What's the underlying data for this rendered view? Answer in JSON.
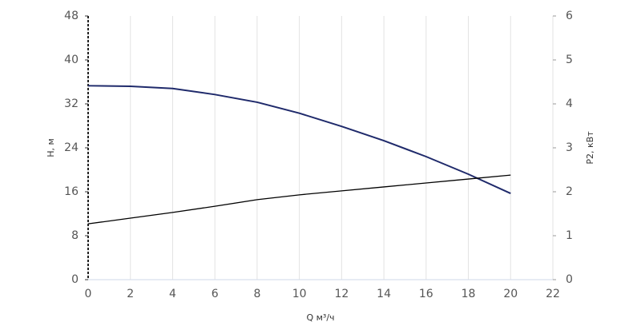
{
  "chart_data": {
    "type": "line",
    "x_label": "Q м³/ч",
    "y_label": "H, м",
    "y2_label": "P2, кВт",
    "x": [
      0,
      2,
      4,
      6,
      8,
      10,
      12,
      14,
      16,
      18,
      20
    ],
    "series": [
      {
        "name": "H",
        "color": "#1f2a6b",
        "values": [
          35.3,
          35.2,
          34.8,
          33.7,
          32.3,
          30.3,
          27.9,
          25.3,
          22.4,
          19.2,
          15.7
        ]
      },
      {
        "name": "P2",
        "color": "#000000",
        "axis": "y2",
        "values": [
          1.27,
          1.4,
          1.53,
          1.67,
          1.82,
          1.93,
          2.02,
          2.11,
          2.2,
          2.29,
          2.38
        ]
      }
    ],
    "xlim": [
      0,
      22
    ],
    "xticks": [
      0,
      2,
      4,
      6,
      8,
      10,
      12,
      14,
      16,
      18,
      20,
      22
    ],
    "ylim": [
      0,
      48
    ],
    "yticks": [
      0,
      8,
      16,
      24,
      32,
      40,
      48
    ],
    "y2lim": [
      0,
      6
    ],
    "y2ticks": [
      0,
      1,
      2,
      3,
      4,
      5,
      6
    ],
    "grid": true
  }
}
